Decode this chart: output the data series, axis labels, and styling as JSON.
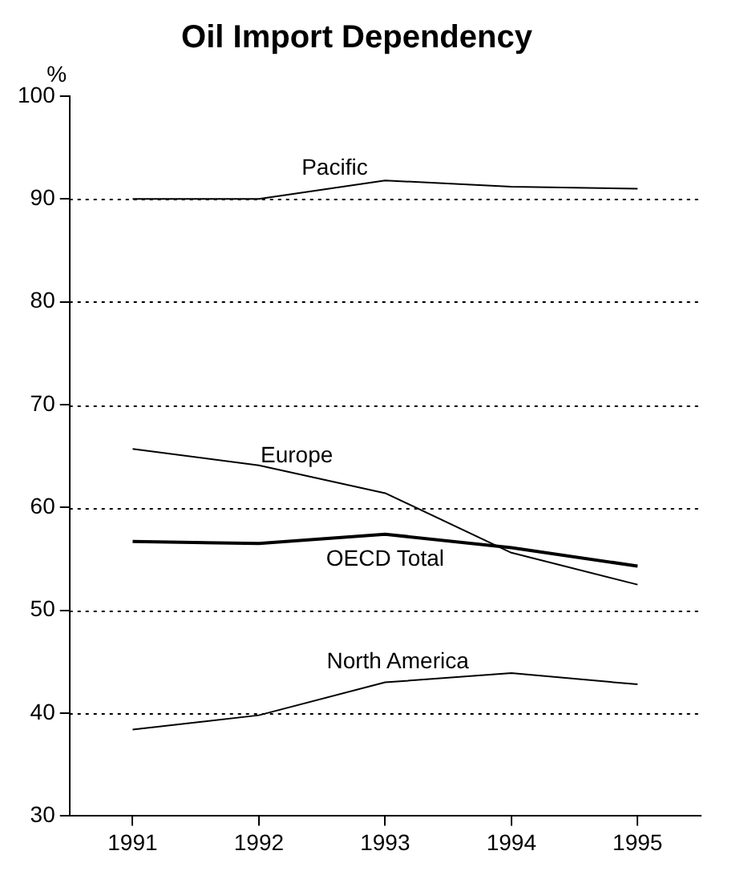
{
  "chart_data": {
    "type": "line",
    "title": "Oil Import Dependency",
    "ylabel": "%",
    "categories": [
      "1991",
      "1992",
      "1993",
      "1994",
      "1995"
    ],
    "series": [
      {
        "name": "Pacific",
        "color": "#000000",
        "values": [
          90,
          90,
          91.8,
          91.2,
          91.0
        ]
      },
      {
        "name": "Europe",
        "color": "#000000",
        "values": [
          65.7,
          64.1,
          61.4,
          55.6,
          52.5
        ]
      },
      {
        "name": "OECD Total",
        "color": "#000000",
        "values": [
          56.7,
          56.5,
          57.4,
          56.1,
          54.3
        ]
      },
      {
        "name": "North America",
        "color": "#000000",
        "values": [
          38.4,
          39.8,
          43.0,
          43.9,
          42.8
        ]
      }
    ],
    "ylim": [
      30,
      100
    ],
    "yticks": [
      30,
      40,
      50,
      60,
      70,
      80,
      90,
      100
    ],
    "grid": "y",
    "legend": false,
    "marker": "none",
    "line_style": "solid"
  }
}
